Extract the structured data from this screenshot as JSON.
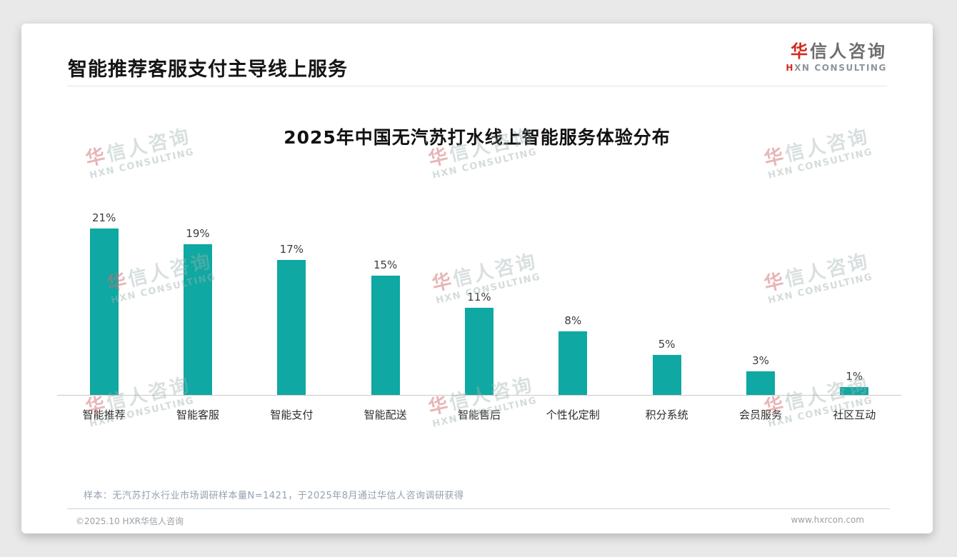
{
  "header": {
    "title": "智能推荐客服支付主导线上服务"
  },
  "logo": {
    "cn_first": "华",
    "cn_rest": "信人咨询",
    "en_first": "H",
    "en_rest": "XN CONSULTING"
  },
  "watermark": {
    "cn_first": "华",
    "cn_rest": "信人咨询",
    "en": "HXN CONSULTING"
  },
  "chart_data": {
    "type": "bar",
    "title": "2025年中国无汽苏打水线上智能服务体验分布",
    "categories": [
      "智能推荐",
      "智能客服",
      "智能支付",
      "智能配送",
      "智能售后",
      "个性化定制",
      "积分系统",
      "会员服务",
      "社区互动"
    ],
    "values": [
      21,
      19,
      17,
      15,
      11,
      8,
      5,
      3,
      1
    ],
    "unit": "%",
    "value_labels": true,
    "xlabel": "",
    "ylabel": "",
    "ylim": [
      0,
      23
    ],
    "grid": false,
    "legend": "none",
    "bar_color": "#0FA8A2"
  },
  "footer": {
    "note": "样本：无汽苏打水行业市场调研样本量N=1421，于2025年8月通过华信人咨询调研获得",
    "copyright": "©2025.10 HXR华信人咨询",
    "website": "www.hxrcon.com"
  },
  "colors": {
    "accent_red": "#D5281E",
    "bar_teal": "#0FA8A2",
    "page_bg": "#E9E9E9"
  }
}
